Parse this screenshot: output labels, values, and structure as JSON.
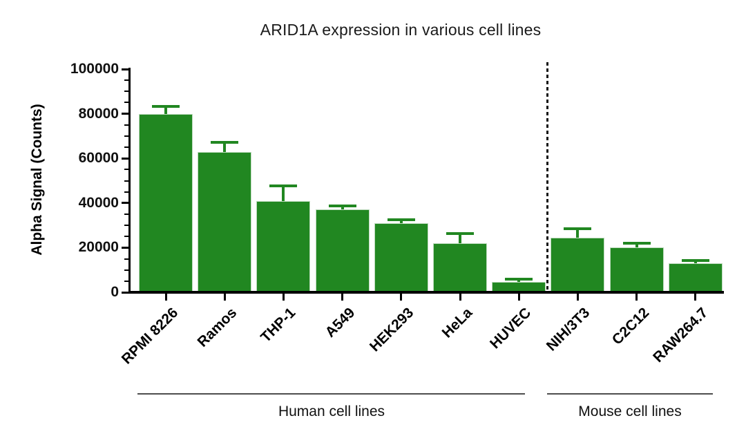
{
  "chart_data": {
    "type": "bar",
    "title": "ARID1A expression in various cell lines",
    "xlabel": "",
    "ylabel": "Alpha Signal (Counts)",
    "ylim": [
      0,
      100000
    ],
    "yticks": [
      0,
      20000,
      40000,
      60000,
      80000,
      100000
    ],
    "y_major_interval": 20000,
    "y_minor_interval": 5000,
    "grid": false,
    "legend": null,
    "categories": [
      "RPMI 8226",
      "Ramos",
      "THP-1",
      "A549",
      "HEK293",
      "HeLa",
      "HUVEC",
      "NIH/3T3",
      "C2C12",
      "RAW264.7"
    ],
    "values": [
      80000,
      63000,
      41000,
      37000,
      31000,
      22000,
      4500,
      24500,
      20000,
      13000
    ],
    "errors": [
      3200,
      4200,
      6600,
      1800,
      1500,
      4200,
      1300,
      4000,
      1900,
      1300
    ],
    "error_style": "upper cap with stem",
    "bar_color": "#218721",
    "error_color": "#218721",
    "axis_color": "#000000",
    "text_color": "#111111",
    "separator": {
      "style": "vertical dashed line",
      "between": [
        "HUVEC",
        "NIH/3T3"
      ]
    },
    "groups": [
      {
        "label": "Human cell lines",
        "categories": [
          "RPMI 8226",
          "Ramos",
          "THP-1",
          "A549",
          "HEK293",
          "HeLa",
          "HUVEC"
        ]
      },
      {
        "label": "Mouse cell lines",
        "categories": [
          "NIH/3T3",
          "C2C12",
          "RAW264.7"
        ]
      }
    ]
  }
}
